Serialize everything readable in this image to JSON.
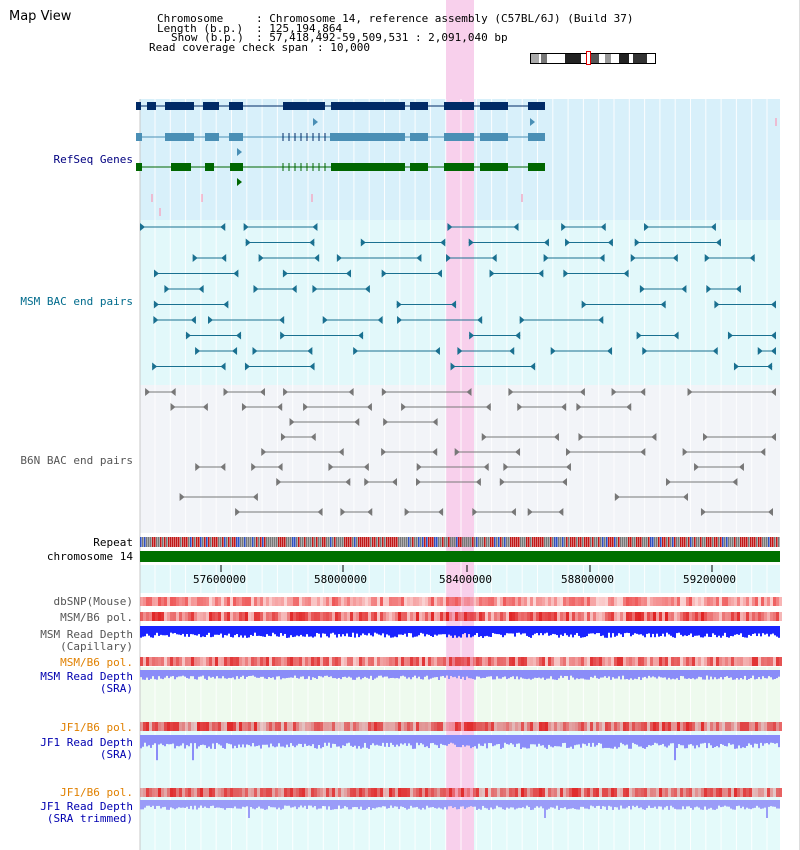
{
  "title": "Map View",
  "info": {
    "chromosome_label": "Chromosome",
    "chromosome_value": ": Chromosome 14, reference assembly (C57BL/6J) (Build 37)",
    "length_label": "Length (b.p.)",
    "length_value": ": 125,194,864",
    "show_label": "Show (b.p.)",
    "show_value": ": 57,418,492-59,509,531 : 2,091,040 bp",
    "coverage_label": "Read coverage check span",
    "coverage_value": ": 10,000"
  },
  "tracks": {
    "refseq": "RefSeq Genes",
    "msm_bac": "MSM BAC end pairs",
    "b6n_bac": "B6N BAC end pairs",
    "repeat": "Repeat",
    "chromosome": "chromosome 14",
    "dbsnp": "dbSNP(Mouse)",
    "msm_b6_pol": "MSM/B6 pol.",
    "msm_read_depth_cap": "MSM Read Depth\n(Capillary)",
    "msm_b6_pol_sra": "MSM/B6 pol.",
    "msm_read_depth_sra": "MSM Read Depth\n(SRA)",
    "jf1_b6_pol": "JF1/B6 pol.",
    "jf1_read_depth": "JF1 Read Depth\n(SRA)",
    "jf1_b6_pol_trim": "JF1/B6 pol.",
    "jf1_read_depth_trim": "JF1 Read Depth\n(SRA trimmed)"
  },
  "axis": {
    "ticks": [
      "57600000",
      "58000000",
      "58400000",
      "58800000",
      "59200000"
    ]
  },
  "colors": {
    "refseq_bg": "#d8f0fa",
    "msm_bg": "#e2f8fa",
    "b6n_bg": "#f2f4f8",
    "highlight": "#f8d0ec",
    "navy_gene": "#002a66",
    "steel_gene": "#4a8fb5",
    "green_gene": "#006600",
    "msm_pair": "#1a7090",
    "b6n_pair": "#777777",
    "chrom_bar": "#007000",
    "pol_red": "#e84040",
    "depth_blue": "#1a24ff",
    "depth_lilac": "#8a8cf8"
  }
}
